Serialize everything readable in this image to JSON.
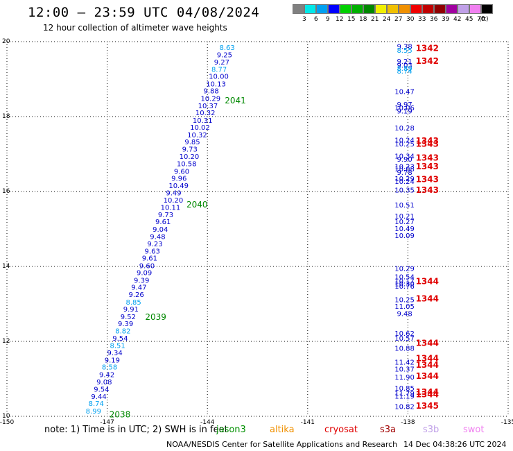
{
  "title": "12:00 – 23:59 UTC 04/08/2024",
  "subtitle": "12 hour collection of altimeter wave heights",
  "legend": {
    "unit": "(ft)",
    "bins": [
      {
        "label": "3",
        "color": "#808080"
      },
      {
        "label": "6",
        "color": "#00e8e8"
      },
      {
        "label": "9",
        "color": "#00a0f0"
      },
      {
        "label": "12",
        "color": "#0000ff"
      },
      {
        "label": "15",
        "color": "#00d000"
      },
      {
        "label": "18",
        "color": "#00b000"
      },
      {
        "label": "21",
        "color": "#008800"
      },
      {
        "label": "24",
        "color": "#f0f000"
      },
      {
        "label": "27",
        "color": "#f0c000"
      },
      {
        "label": "30",
        "color": "#f09000"
      },
      {
        "label": "33",
        "color": "#f00000"
      },
      {
        "label": "36",
        "color": "#c00000"
      },
      {
        "label": "39",
        "color": "#900000"
      },
      {
        "label": "42",
        "color": "#a000a0"
      },
      {
        "label": "45",
        "color": "#c0a0e8"
      },
      {
        "label": "70",
        "color": "#f080f0"
      },
      {
        "label": "",
        "color": "#000000"
      }
    ]
  },
  "notes": "note:  1) Time is in UTC;  2) SWH is in feet",
  "satellites": [
    {
      "name": "jason3",
      "color": "#009000"
    },
    {
      "name": "altika",
      "color": "#f09000"
    },
    {
      "name": "cryosat",
      "color": "#e00000"
    },
    {
      "name": "s3a",
      "color": "#a00000"
    },
    {
      "name": "s3b",
      "color": "#c0a0e8"
    },
    {
      "name": "swot",
      "color": "#f080f0"
    }
  ],
  "credit": "NOAA/NESDIS Center for Satellite Applications and Research",
  "timestamp": "14 Dec 04:38:26 UTC 2024",
  "chart_data": {
    "type": "scatter",
    "xlim": [
      -150,
      -135
    ],
    "ylim": [
      10,
      20
    ],
    "xticks": [
      "-150",
      "-147",
      "-144",
      "-141",
      "-138",
      "-135"
    ],
    "yticks": [
      "20",
      "18",
      "16",
      "14",
      "12",
      "10"
    ],
    "grid": true,
    "tracks": [
      {
        "color": "#0000cc",
        "label_color": "#008800",
        "pass_labels": [
          {
            "text": "2041",
            "y": 18.43
          },
          {
            "text": "2040",
            "y": 15.65
          },
          {
            "text": "2039",
            "y": 12.65
          },
          {
            "text": "2038",
            "y": 10.05
          }
        ],
        "points": [
          {
            "y": 19.85,
            "v": "8.63",
            "c": "#00a0f0"
          },
          {
            "y": 19.66,
            "v": "9.25",
            "c": "#0000cc"
          },
          {
            "y": 19.46,
            "v": "9.27",
            "c": "#0000cc"
          },
          {
            "y": 19.27,
            "v": "8.77",
            "c": "#00a0f0"
          },
          {
            "y": 19.08,
            "v": "10.00",
            "c": "#0000cc"
          },
          {
            "y": 18.88,
            "v": "10.13",
            "c": "#0000cc"
          },
          {
            "y": 18.69,
            "v": "9.88",
            "c": "#0000cc"
          },
          {
            "y": 18.49,
            "v": "10.29",
            "c": "#0000cc"
          },
          {
            "y": 18.3,
            "v": "10.37",
            "c": "#0000cc"
          },
          {
            "y": 18.11,
            "v": "10.32",
            "c": "#0000cc"
          },
          {
            "y": 17.91,
            "v": "10.31",
            "c": "#0000cc"
          },
          {
            "y": 17.72,
            "v": "10.02",
            "c": "#0000cc"
          },
          {
            "y": 17.52,
            "v": "10.32",
            "c": "#0000cc"
          },
          {
            "y": 17.33,
            "v": "9.85",
            "c": "#0000cc"
          },
          {
            "y": 17.14,
            "v": "9.73",
            "c": "#0000cc"
          },
          {
            "y": 16.94,
            "v": "10.20",
            "c": "#0000cc"
          },
          {
            "y": 16.75,
            "v": "10.58",
            "c": "#0000cc"
          },
          {
            "y": 16.55,
            "v": "9.60",
            "c": "#0000cc"
          },
          {
            "y": 16.36,
            "v": "9.96",
            "c": "#0000cc"
          },
          {
            "y": 16.17,
            "v": "10.49",
            "c": "#0000cc"
          },
          {
            "y": 15.97,
            "v": "9.49",
            "c": "#0000cc"
          },
          {
            "y": 15.78,
            "v": "10.20",
            "c": "#0000cc"
          },
          {
            "y": 15.58,
            "v": "10.11",
            "c": "#0000cc"
          },
          {
            "y": 15.39,
            "v": "9.73",
            "c": "#0000cc"
          },
          {
            "y": 15.2,
            "v": "9.61",
            "c": "#0000cc"
          },
          {
            "y": 15.0,
            "v": "9.04",
            "c": "#0000cc"
          },
          {
            "y": 14.81,
            "v": "9.48",
            "c": "#0000cc"
          },
          {
            "y": 14.61,
            "v": "9.23",
            "c": "#0000cc"
          },
          {
            "y": 14.42,
            "v": "9.63",
            "c": "#0000cc"
          },
          {
            "y": 14.23,
            "v": "9.61",
            "c": "#0000cc"
          },
          {
            "y": 14.03,
            "v": "9.60",
            "c": "#0000cc"
          },
          {
            "y": 13.84,
            "v": "9.09",
            "c": "#0000cc"
          },
          {
            "y": 13.64,
            "v": "9.39",
            "c": "#0000cc"
          },
          {
            "y": 13.45,
            "v": "9.47",
            "c": "#0000cc"
          },
          {
            "y": 13.26,
            "v": "9.26",
            "c": "#0000cc"
          },
          {
            "y": 13.06,
            "v": "8.85",
            "c": "#00a0f0"
          },
          {
            "y": 12.87,
            "v": "9.91",
            "c": "#0000cc"
          },
          {
            "y": 12.67,
            "v": "9.52",
            "c": "#0000cc"
          },
          {
            "y": 12.48,
            "v": "9.39",
            "c": "#0000cc"
          },
          {
            "y": 12.29,
            "v": "8.82",
            "c": "#00a0f0"
          },
          {
            "y": 12.09,
            "v": "9.54",
            "c": "#0000cc"
          },
          {
            "y": 11.9,
            "v": "8.51",
            "c": "#00a0f0"
          },
          {
            "y": 11.7,
            "v": "9.34",
            "c": "#0000cc"
          },
          {
            "y": 11.51,
            "v": "9.19",
            "c": "#0000cc"
          },
          {
            "y": 11.32,
            "v": "8.58",
            "c": "#00a0f0"
          },
          {
            "y": 11.12,
            "v": "9.42",
            "c": "#0000cc"
          },
          {
            "y": 10.93,
            "v": "9.08",
            "c": "#0000cc"
          },
          {
            "y": 10.73,
            "v": "9.54",
            "c": "#0000cc"
          },
          {
            "y": 10.54,
            "v": "9.44",
            "c": "#0000cc"
          },
          {
            "y": 10.35,
            "v": "8.74",
            "c": "#00a0f0"
          },
          {
            "y": 10.15,
            "v": "8.99",
            "c": "#00a0f0"
          }
        ]
      },
      {
        "color": "#0000cc",
        "label_color": "#e00000",
        "pass_labels": [
          {
            "text": "1342",
            "y": 19.82
          },
          {
            "text": "1342",
            "y": 19.48
          },
          {
            "text": "1343",
            "y": 17.35
          },
          {
            "text": "1343",
            "y": 17.27
          },
          {
            "text": "1343",
            "y": 16.9
          },
          {
            "text": "1343",
            "y": 16.67
          },
          {
            "text": "1343",
            "y": 16.32
          },
          {
            "text": "1343",
            "y": 16.04
          },
          {
            "text": "1344",
            "y": 13.6
          },
          {
            "text": "1344",
            "y": 13.14
          },
          {
            "text": "1344",
            "y": 11.95
          },
          {
            "text": "1344",
            "y": 11.55
          },
          {
            "text": "1344",
            "y": 11.37
          },
          {
            "text": "1344",
            "y": 11.07
          },
          {
            "text": "1344",
            "y": 10.65
          },
          {
            "text": "1344",
            "y": 10.58
          },
          {
            "text": "1345",
            "y": 10.28
          }
        ],
        "points": [
          {
            "y": 19.88,
            "v": "9.38",
            "c": "#0000cc"
          },
          {
            "y": 19.78,
            "v": "8.55",
            "c": "#00a0f0"
          },
          {
            "y": 19.48,
            "v": "9.21",
            "c": "#0000cc"
          },
          {
            "y": 19.38,
            "v": "9.03",
            "c": "#0000cc"
          },
          {
            "y": 19.3,
            "v": "8.89",
            "c": "#00a0f0"
          },
          {
            "y": 19.22,
            "v": "8.74",
            "c": "#00a0f0"
          },
          {
            "y": 18.68,
            "v": "10.47",
            "c": "#0000cc"
          },
          {
            "y": 18.33,
            "v": "9.97",
            "c": "#0000cc"
          },
          {
            "y": 18.24,
            "v": "10.06",
            "c": "#0000cc"
          },
          {
            "y": 18.16,
            "v": "9.19",
            "c": "#0000cc"
          },
          {
            "y": 17.7,
            "v": "10.28",
            "c": "#0000cc"
          },
          {
            "y": 17.38,
            "v": "10.24",
            "c": "#0000cc"
          },
          {
            "y": 17.28,
            "v": "10.25",
            "c": "#0000cc"
          },
          {
            "y": 16.95,
            "v": "10.34",
            "c": "#0000cc"
          },
          {
            "y": 16.87,
            "v": "9.90",
            "c": "#0000cc"
          },
          {
            "y": 16.68,
            "v": "10.23",
            "c": "#0000cc"
          },
          {
            "y": 16.61,
            "v": "10.08",
            "c": "#0000cc"
          },
          {
            "y": 16.52,
            "v": "9.78",
            "c": "#0000cc"
          },
          {
            "y": 16.35,
            "v": "10.29",
            "c": "#0000cc"
          },
          {
            "y": 16.28,
            "v": "10.24",
            "c": "#0000cc"
          },
          {
            "y": 16.05,
            "v": "10.35",
            "c": "#0000cc"
          },
          {
            "y": 15.65,
            "v": "10.51",
            "c": "#0000cc"
          },
          {
            "y": 15.35,
            "v": "10.21",
            "c": "#0000cc"
          },
          {
            "y": 15.2,
            "v": "10.27",
            "c": "#0000cc"
          },
          {
            "y": 15.02,
            "v": "10.49",
            "c": "#0000cc"
          },
          {
            "y": 14.83,
            "v": "10.09",
            "c": "#0000cc"
          },
          {
            "y": 13.95,
            "v": "10.29",
            "c": "#0000cc"
          },
          {
            "y": 13.73,
            "v": "10.54",
            "c": "#0000cc"
          },
          {
            "y": 13.62,
            "v": "10.17",
            "c": "#0000cc"
          },
          {
            "y": 13.55,
            "v": "10.30",
            "c": "#0000cc"
          },
          {
            "y": 13.48,
            "v": "10.76",
            "c": "#0000cc"
          },
          {
            "y": 13.12,
            "v": "10.25",
            "c": "#0000cc"
          },
          {
            "y": 12.94,
            "v": "11.05",
            "c": "#0000cc"
          },
          {
            "y": 12.75,
            "v": "9.48",
            "c": "#0000cc"
          },
          {
            "y": 12.22,
            "v": "10.62",
            "c": "#0000cc"
          },
          {
            "y": 12.09,
            "v": "10.57",
            "c": "#0000cc"
          },
          {
            "y": 11.82,
            "v": "10.88",
            "c": "#0000cc"
          },
          {
            "y": 11.45,
            "v": "11.42",
            "c": "#0000cc"
          },
          {
            "y": 11.27,
            "v": "10.37",
            "c": "#0000cc"
          },
          {
            "y": 11.06,
            "v": "11.90",
            "c": "#0000cc"
          },
          {
            "y": 10.76,
            "v": "10.85",
            "c": "#0000cc"
          },
          {
            "y": 10.62,
            "v": "11.79",
            "c": "#0000cc"
          },
          {
            "y": 10.55,
            "v": "11.19",
            "c": "#0000cc"
          },
          {
            "y": 10.27,
            "v": "10.82",
            "c": "#0000cc"
          }
        ]
      }
    ]
  }
}
